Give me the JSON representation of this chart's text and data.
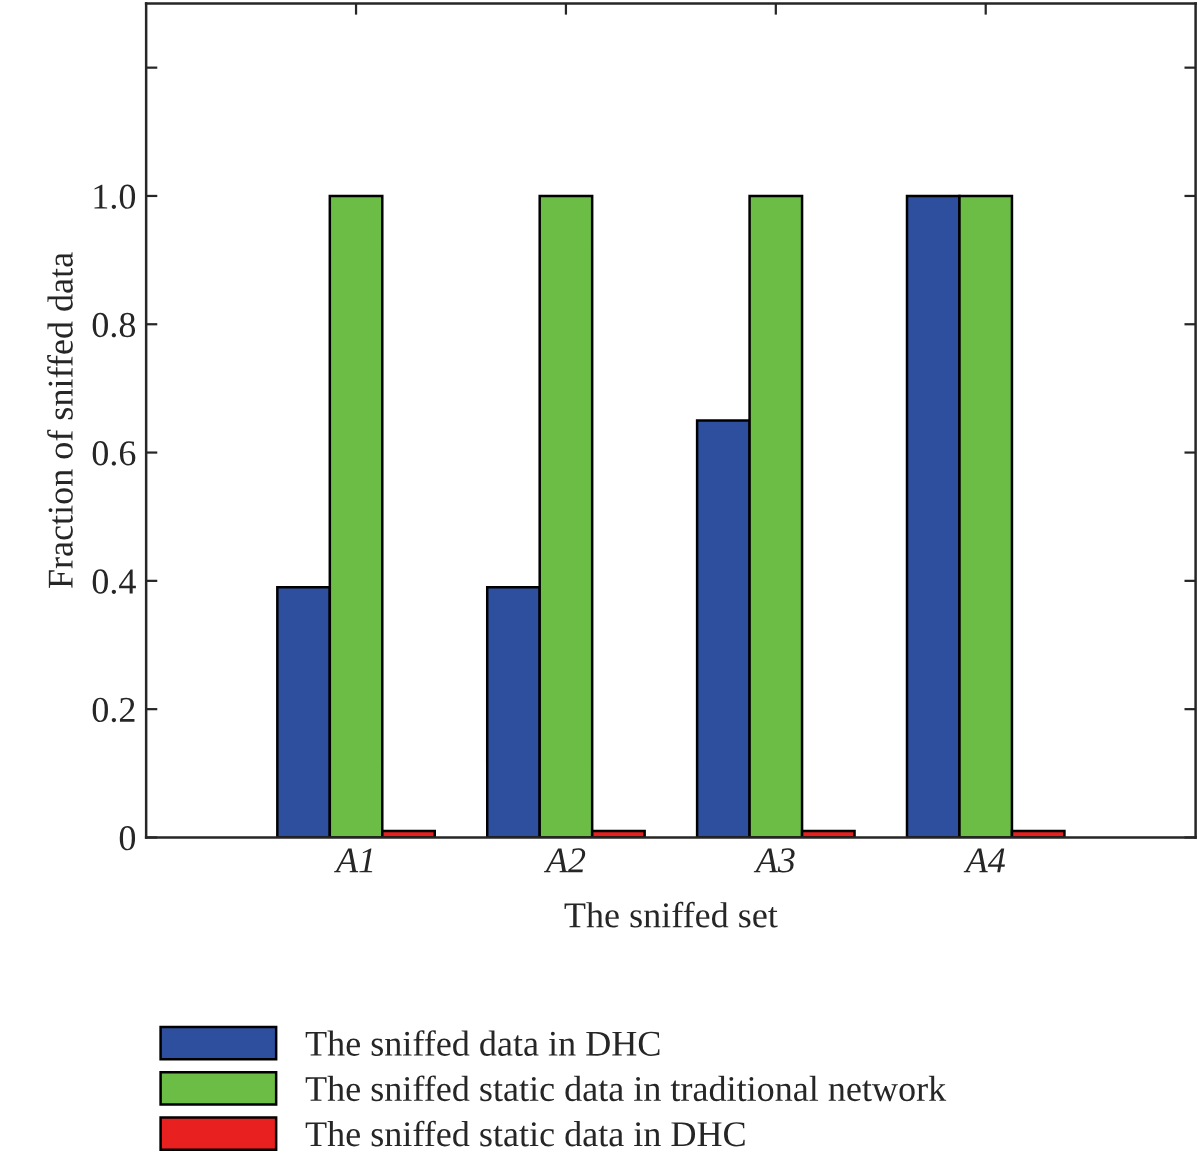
{
  "chart_data": {
    "type": "bar",
    "xlabel": "The sniffed set",
    "ylabel": "Fraction of sniffed data",
    "categories": [
      "A1",
      "A2",
      "A3",
      "A4"
    ],
    "series": [
      {
        "name": "The sniffed data in DHC",
        "color": "#2e4f9e",
        "values": [
          0.39,
          0.39,
          0.65,
          1.0
        ]
      },
      {
        "name": "The sniffed static data in traditional network",
        "color": "#6cbd45",
        "values": [
          1.0,
          1.0,
          1.0,
          1.0
        ]
      },
      {
        "name": "The sniffed static data in DHC",
        "color": "#e8201f",
        "values": [
          0.01,
          0.01,
          0.01,
          0.01
        ]
      }
    ],
    "ylim": [
      0,
      1.3
    ],
    "yticks": [
      0,
      {
        "value": 0.2,
        "label": "0.2"
      },
      {
        "value": 0.4,
        "label": "0.4"
      },
      {
        "value": 0.6,
        "label": "0.6"
      },
      {
        "value": 0.8,
        "label": "0.8"
      },
      {
        "value": 1.0,
        "label": "1.0"
      },
      {
        "value": 1.2,
        "label": null
      }
    ],
    "legend": "bottom",
    "grid": false
  }
}
